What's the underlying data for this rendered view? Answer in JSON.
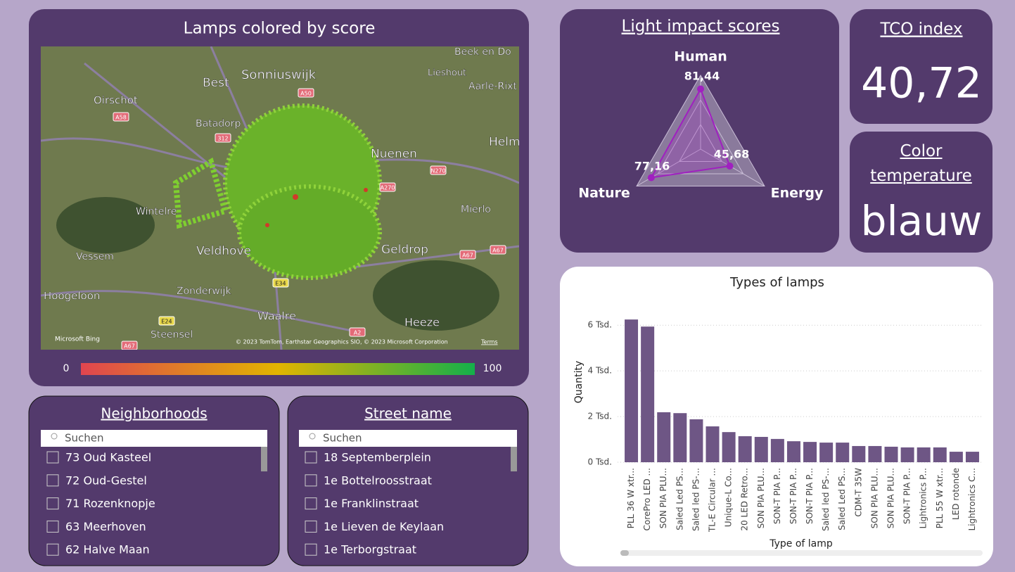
{
  "map_panel": {
    "title": "Lamps colored by score",
    "place_labels": [
      "Beek en Do",
      "Lieshout",
      "Aarle-Rixt",
      "Sonniuswijk",
      "Best",
      "Oirschot",
      "Batadorp",
      "Nuenen",
      "Helm",
      "Wintelre",
      "Mierlo",
      "Vessem",
      "Veldhove",
      "Geldrop",
      "Hoogeloon",
      "Zonderwijk",
      "Waalre",
      "Heeze",
      "Steensel"
    ],
    "road_labels": [
      "A58",
      "A50",
      "312",
      "N270",
      "A270",
      "A67",
      "A67",
      "E34",
      "E24",
      "A2",
      "A67"
    ],
    "provider": "Microsoft Bing",
    "attribution": "© 2023 TomTom, Earthstar Geographics SIO, © 2023 Microsoft Corporation",
    "terms": "Terms",
    "color_scale": {
      "min": 0,
      "max": 100,
      "colors": [
        "#e0454f",
        "#e2b400",
        "#14b04a"
      ]
    }
  },
  "chart_data": [
    {
      "type": "radar",
      "title": "Light impact scores",
      "categories": [
        "Human",
        "Energy",
        "Nature"
      ],
      "values": [
        81.44,
        45.68,
        77.16
      ],
      "value_labels": [
        "81,44",
        "45,68",
        "77,16"
      ],
      "rlim": [
        0,
        100
      ],
      "color": "#a020c0"
    },
    {
      "type": "bar",
      "title": "Types of lamps",
      "x_label": "Type of lamp",
      "y_label": "Quantity",
      "color": "#6e5685",
      "categories": [
        "PLL 36 W xtr...",
        "CorePro LED ...",
        "SON PIA PLU...",
        "Saled Led PS...",
        "Saled led PS-...",
        "TL-E Circular ...",
        "Unique-L Co...",
        "20 LED Retro...",
        "SON PIA PLU...",
        "SON-T PIA P...",
        "SON-T PIA P...",
        "SON-T PIA P...",
        "Saled led PS-...",
        "Saled Led PS...",
        "CDM-T 35W",
        "SON PIA PLU...",
        "SON PIA PLU...",
        "SON-T PIA P...",
        "Lightronics P...",
        "PLL 55 W xtr...",
        "LED rotonde",
        "Lightronics C..."
      ],
      "values": [
        6250,
        5940,
        2190,
        2150,
        1880,
        1570,
        1320,
        1140,
        1110,
        1020,
        920,
        890,
        860,
        860,
        710,
        710,
        680,
        650,
        650,
        650,
        460,
        460
      ],
      "ylim": [
        0,
        6500
      ],
      "yticks": [
        {
          "value": 0,
          "label": "0 Tsd."
        },
        {
          "value": 2000,
          "label": "2 Tsd."
        },
        {
          "value": 4000,
          "label": "4 Tsd."
        },
        {
          "value": 6000,
          "label": "6 Tsd."
        }
      ],
      "grid": true
    }
  ],
  "tco_card": {
    "title": "TCO index",
    "value": "40,72"
  },
  "color_temperature_card": {
    "title": "Color temperature",
    "value": "blauw"
  },
  "neighborhoods_slicer": {
    "title": "Neighborhoods",
    "search_placeholder": "Suchen",
    "items": [
      "73 Oud Kasteel",
      "72 Oud-Gestel",
      "71 Rozenknopje",
      "63 Meerhoven",
      "62 Halve Maan"
    ]
  },
  "street_slicer": {
    "title": "Street name",
    "search_placeholder": "Suchen",
    "items": [
      "18 Septemberplein",
      "1e Bottelroosstraat",
      "1e Franklinstraat",
      "1e Lieven de Keylaan",
      "1e Terborgstraat"
    ]
  }
}
